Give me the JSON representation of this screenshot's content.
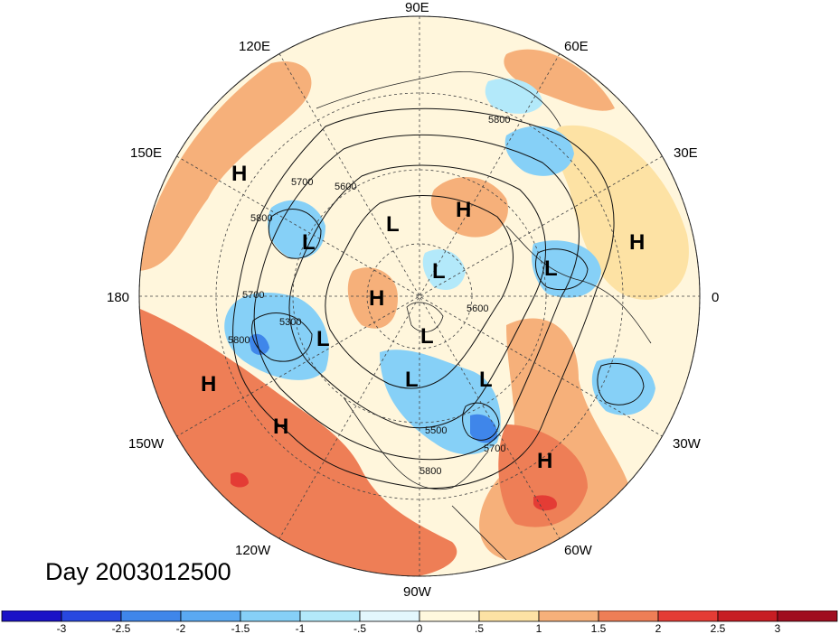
{
  "title": "Day 2003012500",
  "longitude_labels": {
    "top": "90E",
    "top_left": "120E",
    "top_right": "60E",
    "upper_left": "150E",
    "upper_right": "30E",
    "left": "180",
    "right": "0",
    "lower_left": "150W",
    "lower_right": "30W",
    "bottom_left": "120W",
    "bottom_right": "60W",
    "bottom": "90W"
  },
  "pressure_centers": [
    {
      "type": "H",
      "label": "H"
    },
    {
      "type": "H",
      "label": "H"
    },
    {
      "type": "H",
      "label": "H"
    },
    {
      "type": "H",
      "label": "H"
    },
    {
      "type": "H",
      "label": "H"
    },
    {
      "type": "H",
      "label": "H"
    },
    {
      "type": "H",
      "label": "H"
    },
    {
      "type": "L",
      "label": "L"
    },
    {
      "type": "L",
      "label": "L"
    },
    {
      "type": "L",
      "label": "L"
    },
    {
      "type": "L",
      "label": "L"
    },
    {
      "type": "L",
      "label": "L"
    },
    {
      "type": "L",
      "label": "L"
    },
    {
      "type": "L",
      "label": "L"
    },
    {
      "type": "L",
      "label": "L"
    }
  ],
  "contour_labels": [
    "5800",
    "5700",
    "5600",
    "5800",
    "5700",
    "5300",
    "5800",
    "5600",
    "5500",
    "5700",
    "5800"
  ],
  "colorbar": {
    "tick_labels": [
      "-3",
      "-2.5",
      "-2",
      "-1.5",
      "-1",
      "-.5",
      "0",
      ".5",
      "1",
      "1.5",
      "2",
      "2.5",
      "3"
    ],
    "colors": [
      "#1a12c7",
      "#2848e0",
      "#3f86ea",
      "#5aa9f2",
      "#86d0f7",
      "#b3e9fa",
      "#e3f7fd",
      "#fff8de",
      "#fde2a4",
      "#f6b07a",
      "#ee7e56",
      "#e43c35",
      "#c71d23",
      "#a00d1f"
    ]
  },
  "map_colors": {
    "background": "#fff6dc",
    "light_warm": "#fde2a4",
    "warm": "#f6b07a",
    "hot": "#ee7e56",
    "very_hot": "#e43c35",
    "light_cool": "#b3e9fa",
    "cool": "#86d0f7",
    "cold": "#5aa9f2",
    "very_cold": "#3f86ea",
    "extreme_cold": "#2848e0"
  }
}
